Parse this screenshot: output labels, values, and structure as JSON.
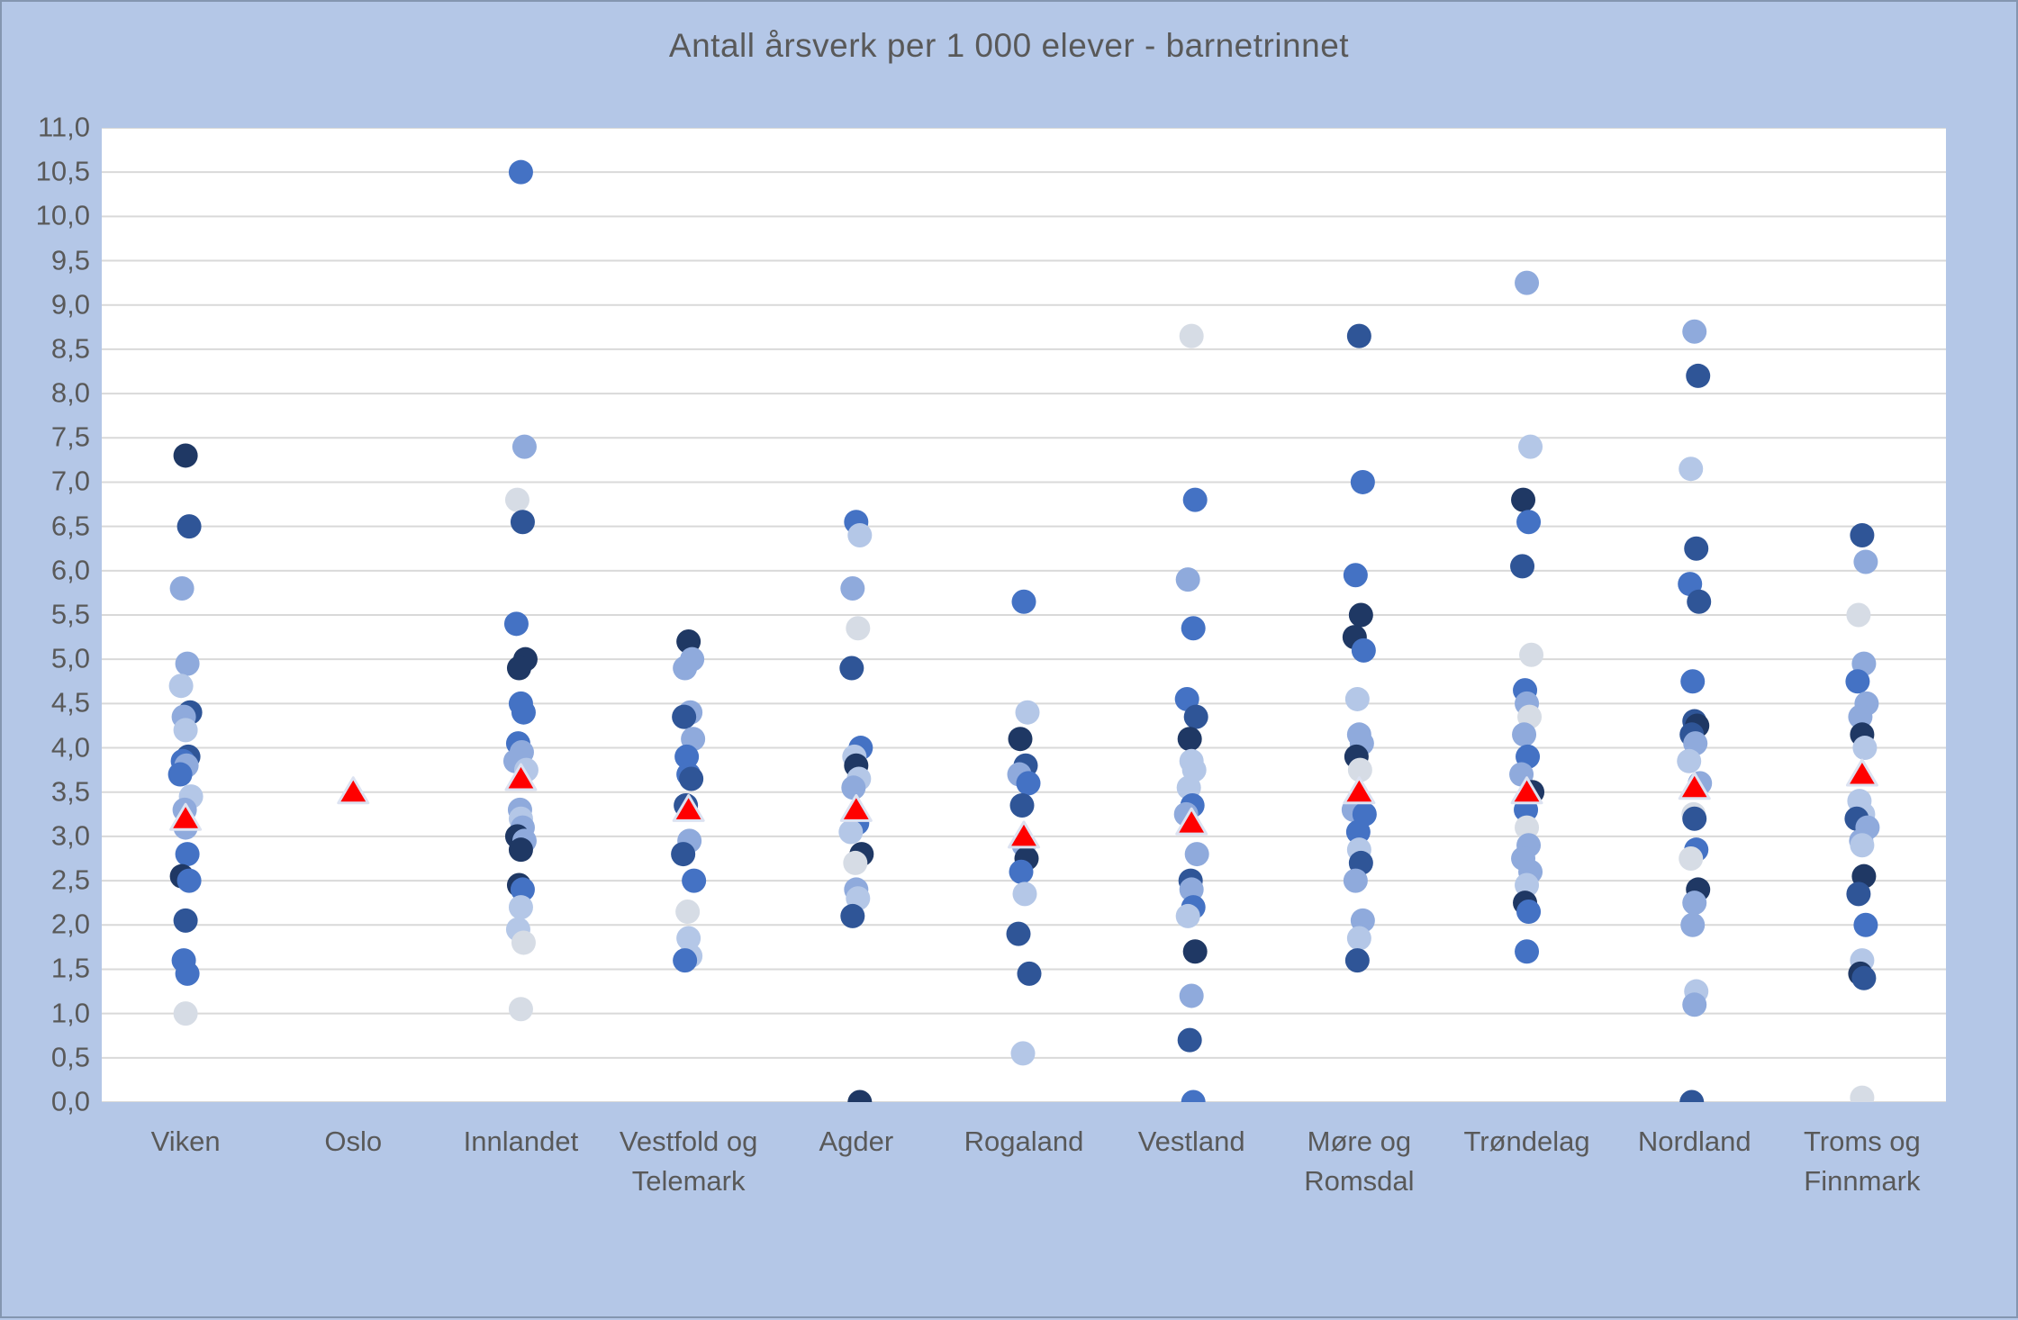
{
  "title": "Antall årsverk per 1 000 elever - barnetrinnet",
  "colors": {
    "background": "#B4C7E7",
    "plot_background": "#FFFFFF",
    "gridline": "#D9D9D9",
    "text": "#595959",
    "mean_marker_fill": "#FF0000",
    "mean_marker_outline": "#DCE2F1",
    "dot_shades": [
      "#1F3864",
      "#2F5597",
      "#4472C4",
      "#8FAADC",
      "#B4C7E7",
      "#D6DCE5"
    ]
  },
  "chart_data": {
    "type": "scatter",
    "title": "Antall årsverk per 1 000 elever - barnetrinnet",
    "xlabel": "",
    "ylabel": "",
    "y_axis": {
      "min": 0.0,
      "max": 11.0,
      "step": 0.5,
      "tick_labels_top_to_bottom": [
        "11,0",
        "10,5",
        "10,0",
        "9,5",
        "9,0",
        "8,5",
        "8,0",
        "7,5",
        "7,0",
        "6,5",
        "6,0",
        "5,5",
        "5,0",
        "4,5",
        "4,0",
        "3,5",
        "3,0",
        "2,5",
        "2,0",
        "1,5",
        "1,0",
        "0,5",
        "0,0"
      ]
    },
    "grid": "horizontal-only",
    "legend": "none",
    "marker_note": "blue circles = municipalities (shade index 0=darkest..5=lightest), red triangle = fylke mean",
    "categories": [
      {
        "name": "Viken",
        "label_lines": [
          "Viken"
        ]
      },
      {
        "name": "Oslo",
        "label_lines": [
          "Oslo"
        ]
      },
      {
        "name": "Innlandet",
        "label_lines": [
          "Innlandet"
        ]
      },
      {
        "name": "Vestfold og Telemark",
        "label_lines": [
          "Vestfold og",
          "Telemark"
        ]
      },
      {
        "name": "Agder",
        "label_lines": [
          "Agder"
        ]
      },
      {
        "name": "Rogaland",
        "label_lines": [
          "Rogaland"
        ]
      },
      {
        "name": "Vestland",
        "label_lines": [
          "Vestland"
        ]
      },
      {
        "name": "Møre og Romsdal",
        "label_lines": [
          "Møre og",
          "Romsdal"
        ]
      },
      {
        "name": "Trøndelag",
        "label_lines": [
          "Trøndelag"
        ]
      },
      {
        "name": "Nordland",
        "label_lines": [
          "Nordland"
        ]
      },
      {
        "name": "Troms og Finnmark",
        "label_lines": [
          "Troms og",
          "Finnmark"
        ]
      }
    ],
    "series": [
      {
        "name": "Viken",
        "mean": 3.2,
        "points": [
          [
            7.3,
            0
          ],
          [
            6.5,
            1
          ],
          [
            5.8,
            3
          ],
          [
            4.95,
            3
          ],
          [
            4.7,
            4
          ],
          [
            4.4,
            1
          ],
          [
            4.35,
            3
          ],
          [
            4.2,
            4
          ],
          [
            3.9,
            1
          ],
          [
            3.85,
            2
          ],
          [
            3.8,
            3
          ],
          [
            3.7,
            2
          ],
          [
            3.45,
            4
          ],
          [
            3.3,
            3
          ],
          [
            3.1,
            3
          ],
          [
            2.8,
            2
          ],
          [
            2.55,
            0
          ],
          [
            2.5,
            2
          ],
          [
            2.05,
            1
          ],
          [
            1.6,
            2
          ],
          [
            1.45,
            2
          ],
          [
            1.0,
            5
          ]
        ]
      },
      {
        "name": "Oslo",
        "mean": 3.5,
        "points": []
      },
      {
        "name": "Innlandet",
        "mean": 3.65,
        "points": [
          [
            10.5,
            2
          ],
          [
            7.4,
            3
          ],
          [
            6.8,
            5
          ],
          [
            6.55,
            1
          ],
          [
            5.4,
            2
          ],
          [
            5.0,
            0
          ],
          [
            4.9,
            0
          ],
          [
            4.5,
            2
          ],
          [
            4.4,
            2
          ],
          [
            4.05,
            2
          ],
          [
            3.95,
            3
          ],
          [
            3.85,
            3
          ],
          [
            3.75,
            4
          ],
          [
            3.3,
            3
          ],
          [
            3.2,
            4
          ],
          [
            3.1,
            3
          ],
          [
            3.0,
            0
          ],
          [
            2.95,
            3
          ],
          [
            2.85,
            0
          ],
          [
            2.45,
            0
          ],
          [
            2.4,
            2
          ],
          [
            2.2,
            4
          ],
          [
            1.95,
            4
          ],
          [
            1.8,
            5
          ],
          [
            1.05,
            5
          ]
        ]
      },
      {
        "name": "Vestfold og Telemark",
        "mean": 3.3,
        "points": [
          [
            5.2,
            0
          ],
          [
            5.0,
            3
          ],
          [
            4.9,
            3
          ],
          [
            4.4,
            3
          ],
          [
            4.35,
            1
          ],
          [
            4.1,
            3
          ],
          [
            3.9,
            2
          ],
          [
            3.7,
            2
          ],
          [
            3.65,
            1
          ],
          [
            3.35,
            1
          ],
          [
            2.95,
            3
          ],
          [
            2.8,
            1
          ],
          [
            2.5,
            2
          ],
          [
            2.15,
            5
          ],
          [
            1.85,
            4
          ],
          [
            1.65,
            4
          ],
          [
            1.6,
            2
          ]
        ]
      },
      {
        "name": "Agder",
        "mean": 3.3,
        "points": [
          [
            6.55,
            2
          ],
          [
            6.4,
            4
          ],
          [
            5.8,
            3
          ],
          [
            5.35,
            5
          ],
          [
            4.9,
            1
          ],
          [
            4.0,
            2
          ],
          [
            3.9,
            4
          ],
          [
            3.8,
            0
          ],
          [
            3.65,
            4
          ],
          [
            3.55,
            3
          ],
          [
            3.15,
            2
          ],
          [
            3.05,
            4
          ],
          [
            2.8,
            0
          ],
          [
            2.7,
            5
          ],
          [
            2.4,
            3
          ],
          [
            2.3,
            4
          ],
          [
            2.1,
            1
          ],
          [
            0.0,
            0
          ]
        ]
      },
      {
        "name": "Rogaland",
        "mean": 3.0,
        "points": [
          [
            5.65,
            2
          ],
          [
            4.4,
            4
          ],
          [
            4.1,
            0
          ],
          [
            3.8,
            1
          ],
          [
            3.7,
            3
          ],
          [
            3.6,
            2
          ],
          [
            3.35,
            1
          ],
          [
            2.9,
            3
          ],
          [
            2.75,
            0
          ],
          [
            2.6,
            2
          ],
          [
            2.35,
            4
          ],
          [
            1.9,
            1
          ],
          [
            1.45,
            1
          ],
          [
            0.55,
            4
          ]
        ]
      },
      {
        "name": "Vestland",
        "mean": 3.15,
        "points": [
          [
            8.65,
            5
          ],
          [
            6.8,
            2
          ],
          [
            5.9,
            3
          ],
          [
            5.35,
            2
          ],
          [
            4.55,
            2
          ],
          [
            4.35,
            1
          ],
          [
            4.1,
            0
          ],
          [
            3.85,
            4
          ],
          [
            3.75,
            4
          ],
          [
            3.55,
            4
          ],
          [
            3.35,
            2
          ],
          [
            3.25,
            3
          ],
          [
            2.8,
            3
          ],
          [
            2.5,
            1
          ],
          [
            2.4,
            3
          ],
          [
            2.2,
            2
          ],
          [
            2.1,
            4
          ],
          [
            1.7,
            0
          ],
          [
            1.2,
            3
          ],
          [
            0.7,
            1
          ],
          [
            0.0,
            2
          ]
        ]
      },
      {
        "name": "Møre og Romsdal",
        "mean": 3.5,
        "points": [
          [
            8.65,
            1
          ],
          [
            7.0,
            2
          ],
          [
            5.95,
            2
          ],
          [
            5.5,
            0
          ],
          [
            5.25,
            0
          ],
          [
            5.1,
            2
          ],
          [
            4.55,
            4
          ],
          [
            4.15,
            3
          ],
          [
            4.05,
            3
          ],
          [
            3.9,
            0
          ],
          [
            3.75,
            5
          ],
          [
            3.3,
            3
          ],
          [
            3.25,
            2
          ],
          [
            3.05,
            2
          ],
          [
            2.85,
            4
          ],
          [
            2.7,
            1
          ],
          [
            2.5,
            3
          ],
          [
            2.05,
            3
          ],
          [
            1.85,
            4
          ],
          [
            1.6,
            1
          ]
        ]
      },
      {
        "name": "Trøndelag",
        "mean": 3.5,
        "points": [
          [
            9.25,
            3
          ],
          [
            7.4,
            4
          ],
          [
            6.8,
            0
          ],
          [
            6.55,
            2
          ],
          [
            6.05,
            1
          ],
          [
            5.05,
            5
          ],
          [
            4.65,
            2
          ],
          [
            4.5,
            3
          ],
          [
            4.35,
            5
          ],
          [
            4.15,
            3
          ],
          [
            3.9,
            2
          ],
          [
            3.7,
            3
          ],
          [
            3.5,
            0
          ],
          [
            3.3,
            2
          ],
          [
            3.1,
            5
          ],
          [
            2.9,
            3
          ],
          [
            2.75,
            3
          ],
          [
            2.6,
            3
          ],
          [
            2.45,
            4
          ],
          [
            2.25,
            0
          ],
          [
            2.15,
            2
          ],
          [
            1.7,
            2
          ]
        ]
      },
      {
        "name": "Nordland",
        "mean": 3.55,
        "points": [
          [
            8.7,
            3
          ],
          [
            8.2,
            1
          ],
          [
            7.15,
            4
          ],
          [
            6.25,
            1
          ],
          [
            5.85,
            2
          ],
          [
            5.65,
            1
          ],
          [
            4.75,
            2
          ],
          [
            4.3,
            1
          ],
          [
            4.25,
            0
          ],
          [
            4.15,
            1
          ],
          [
            4.05,
            3
          ],
          [
            3.85,
            4
          ],
          [
            3.6,
            3
          ],
          [
            3.25,
            5
          ],
          [
            3.2,
            1
          ],
          [
            2.85,
            2
          ],
          [
            2.75,
            5
          ],
          [
            2.4,
            0
          ],
          [
            2.25,
            3
          ],
          [
            2.0,
            3
          ],
          [
            1.25,
            4
          ],
          [
            1.1,
            3
          ],
          [
            0.0,
            1
          ]
        ]
      },
      {
        "name": "Troms og Finnmark",
        "mean": 3.7,
        "points": [
          [
            6.4,
            1
          ],
          [
            6.1,
            3
          ],
          [
            5.5,
            5
          ],
          [
            4.95,
            3
          ],
          [
            4.75,
            2
          ],
          [
            4.5,
            3
          ],
          [
            4.35,
            3
          ],
          [
            4.15,
            0
          ],
          [
            4.0,
            4
          ],
          [
            3.4,
            4
          ],
          [
            3.25,
            4
          ],
          [
            3.2,
            1
          ],
          [
            3.1,
            3
          ],
          [
            2.95,
            3
          ],
          [
            2.9,
            4
          ],
          [
            2.55,
            0
          ],
          [
            2.35,
            1
          ],
          [
            2.0,
            2
          ],
          [
            1.6,
            4
          ],
          [
            1.45,
            0
          ],
          [
            1.4,
            1
          ],
          [
            0.05,
            5
          ]
        ]
      }
    ]
  }
}
